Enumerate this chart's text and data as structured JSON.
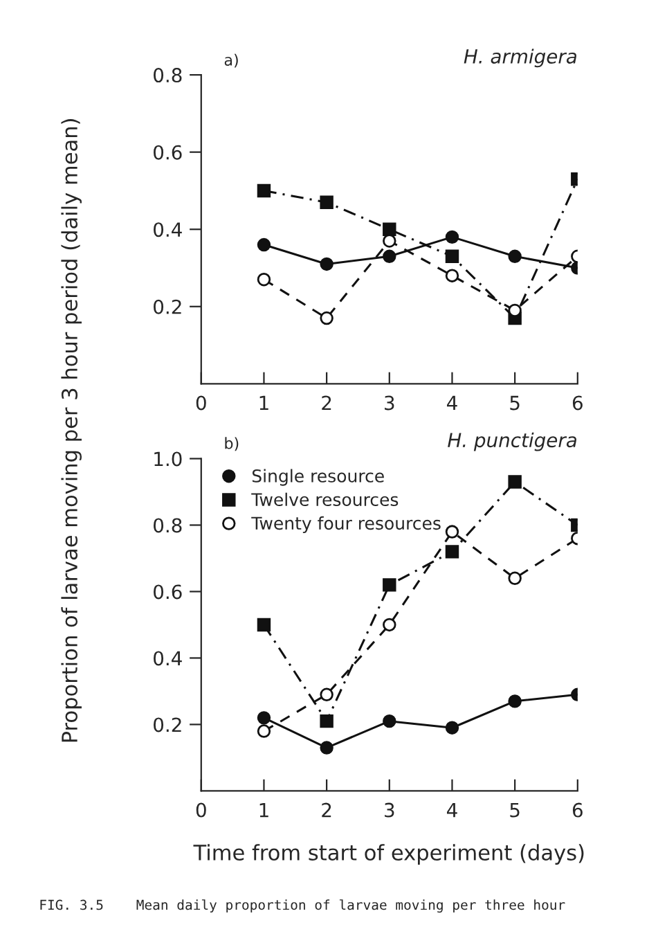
{
  "chart_data": [
    {
      "type": "line",
      "title": "H. armigera",
      "ylabel": "Proportion of larvae moving per 3 hour period (daily mean)",
      "annotations": [
        "a)"
      ],
      "x": [
        1,
        2,
        3,
        4,
        5,
        6
      ],
      "xlim": [
        0,
        6
      ],
      "xticks": [
        0,
        1,
        2,
        3,
        4,
        5,
        6
      ],
      "ylim": [
        0,
        0.8
      ],
      "yticks": [
        {
          "value": 0.2,
          "label": "0.2"
        },
        {
          "value": 0.4,
          "label": "0.4"
        },
        {
          "value": 0.6,
          "label": "0.6"
        },
        {
          "value": 0.8,
          "label": "0.8"
        }
      ],
      "grid": false,
      "legend": false,
      "series": [
        {
          "color": "#111111",
          "marker": "circle",
          "line_style": "solid",
          "values": [
            0.36,
            0.31,
            0.33,
            0.38,
            0.33,
            0.3
          ]
        },
        {
          "color": "#111111",
          "marker": "square",
          "line_style": "dashdot",
          "values": [
            0.5,
            0.47,
            0.4,
            0.33,
            0.17,
            0.53
          ]
        },
        {
          "color": "#111111",
          "marker": "open circle",
          "line_style": "dashed",
          "values": [
            0.27,
            0.17,
            0.37,
            0.28,
            0.19,
            0.33
          ]
        }
      ]
    },
    {
      "type": "line",
      "title": "H. punctigera",
      "xlabel": "Time from start of experiment (days)",
      "annotations": [
        "b)",
        "FIG. 3.5    Mean daily proportion of larvae moving per three hour"
      ],
      "x": [
        1,
        2,
        3,
        4,
        5,
        6
      ],
      "xlim": [
        0,
        6
      ],
      "xticks": [
        0,
        1,
        2,
        3,
        4,
        5,
        6
      ],
      "ylim": [
        0,
        1.0
      ],
      "yticks": [
        {
          "value": 0.2,
          "label": "0.2"
        },
        {
          "value": 0.4,
          "label": "0.4"
        },
        {
          "value": 0.6,
          "label": "0.6"
        },
        {
          "value": 0.8,
          "label": "0.8"
        },
        {
          "value": 1.0,
          "label": "1.0"
        }
      ],
      "grid": false,
      "legend": "top left",
      "series": [
        {
          "name": "Single resource",
          "color": "#111111",
          "marker": "circle",
          "line_style": "solid",
          "values": [
            0.22,
            0.13,
            0.21,
            0.19,
            0.27,
            0.29
          ]
        },
        {
          "name": "Twelve resources",
          "color": "#111111",
          "marker": "square",
          "line_style": "dashdot",
          "values": [
            0.5,
            0.21,
            0.62,
            0.72,
            0.93,
            0.8
          ]
        },
        {
          "name": "Twenty four resources",
          "color": "#111111",
          "marker": "open circle",
          "line_style": "dashed",
          "values": [
            0.18,
            0.29,
            0.5,
            0.78,
            0.64,
            0.76
          ]
        }
      ]
    }
  ]
}
